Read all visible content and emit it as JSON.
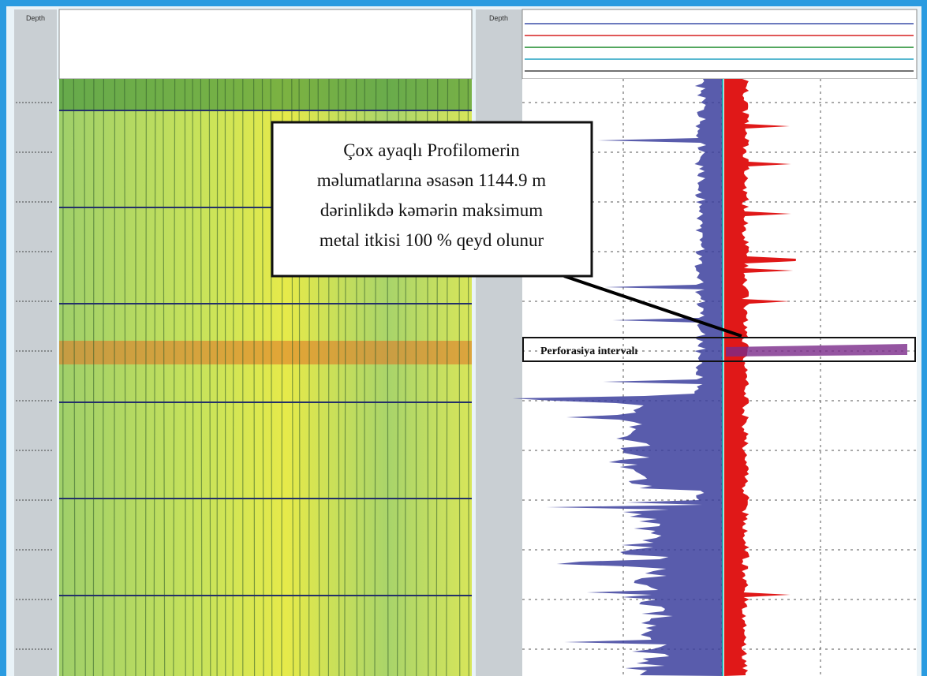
{
  "tracks": {
    "left_depth_header": "Depth",
    "right_depth_header": "Depth"
  },
  "annotation": {
    "lines": [
      "Çox ayaqlı Profilomerin",
      "məlumatlarına əsasən 1144.9  m",
      "dərinlikdə  kəmərin maksimum",
      "metal itkisi 100 % qeyd olunur"
    ]
  },
  "perforation_label": "Perforasiya intervalı"
}
